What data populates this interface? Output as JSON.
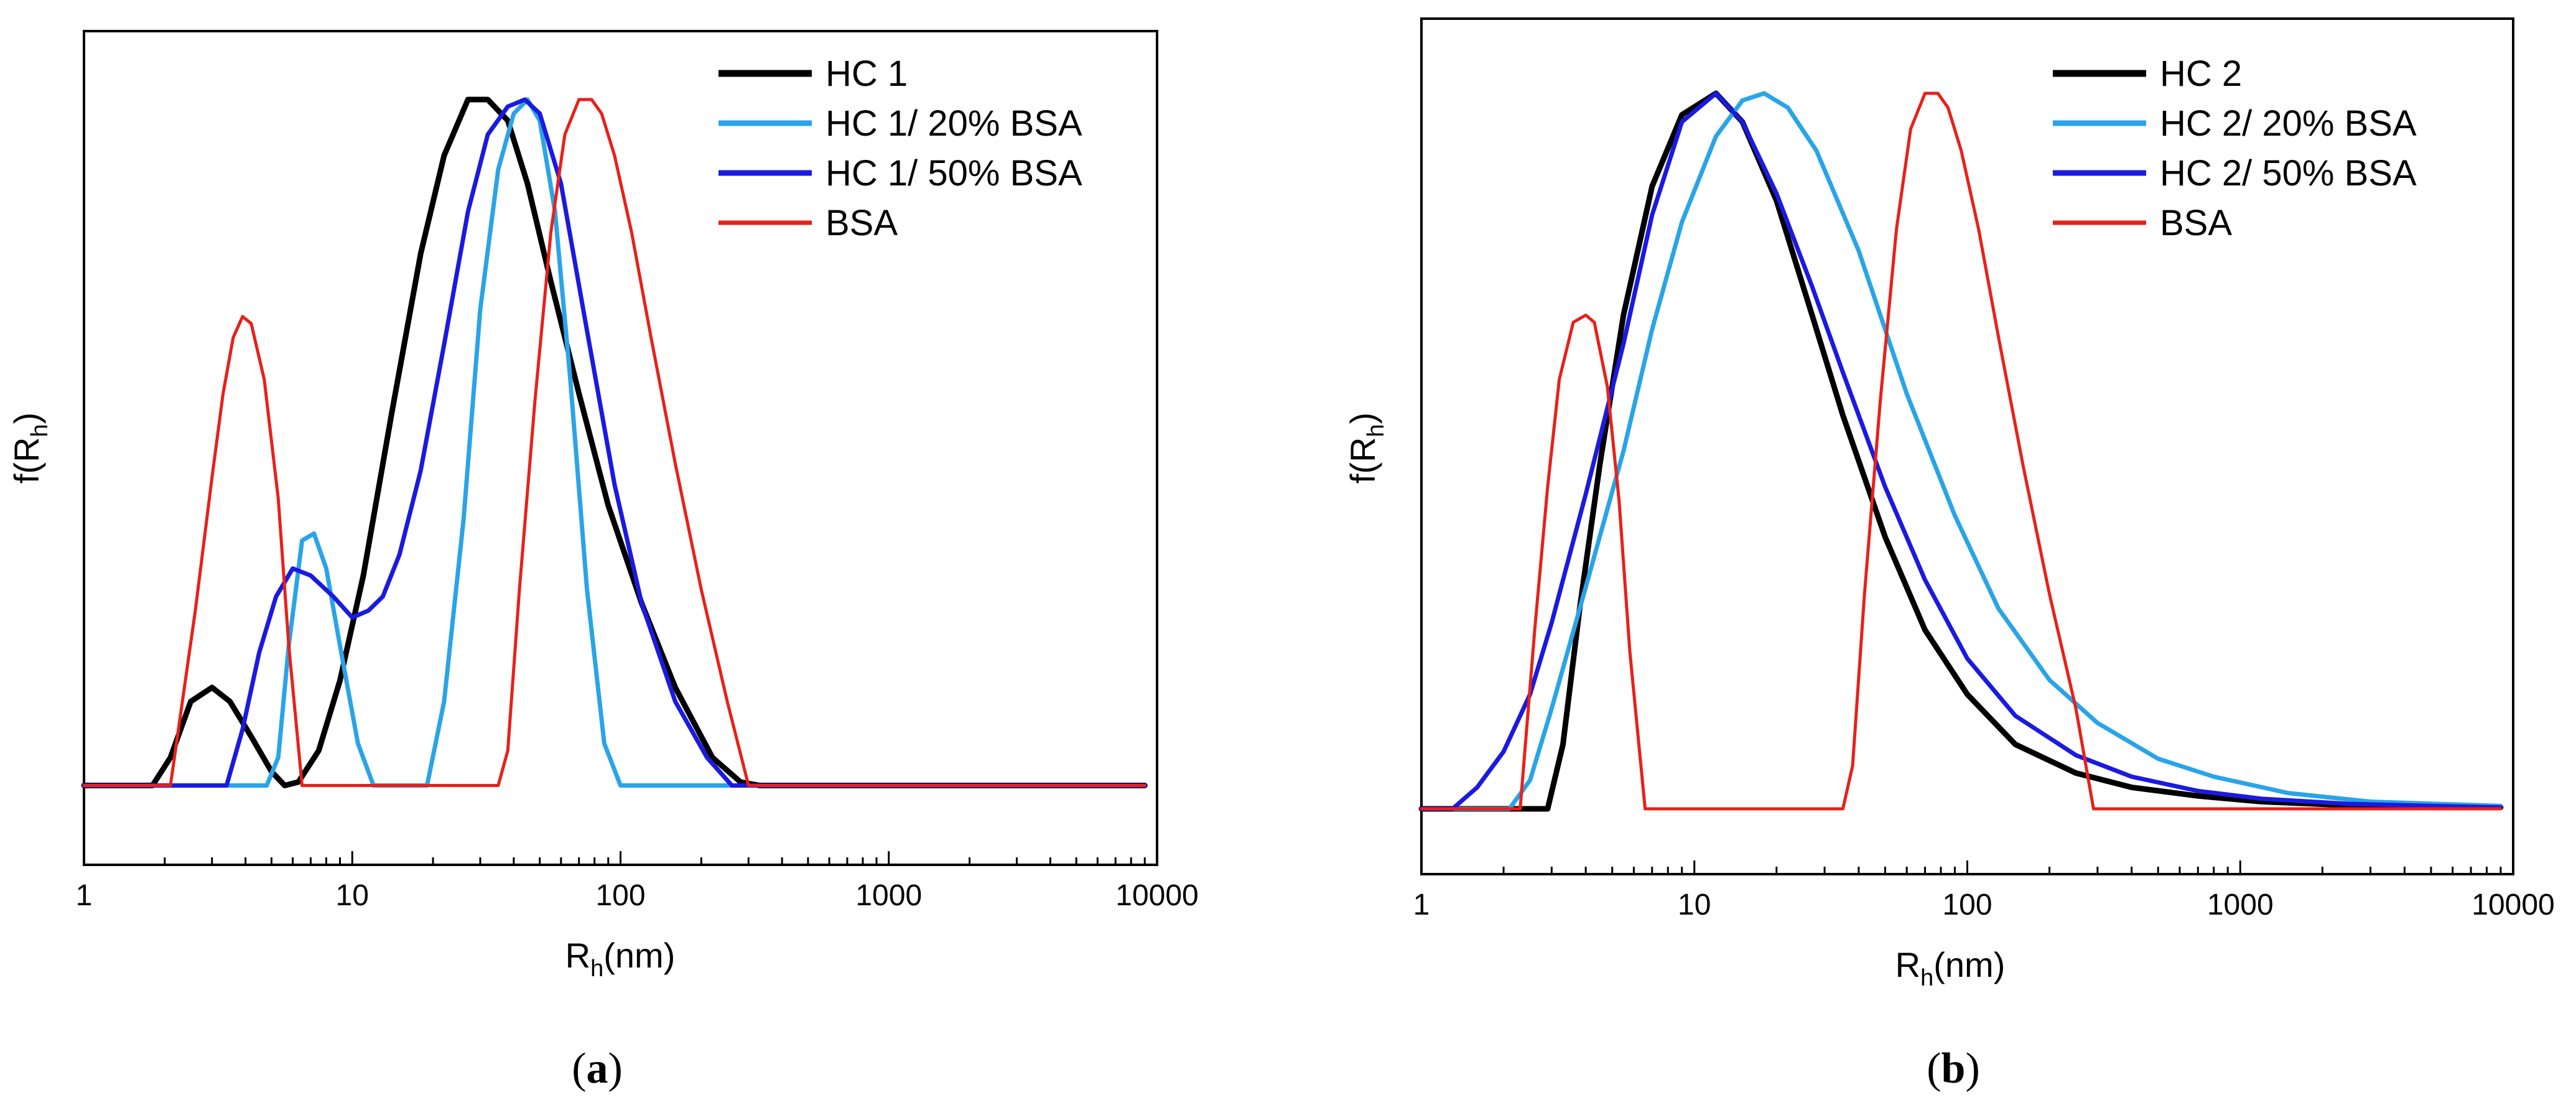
{
  "chart_data": [
    {
      "type": "line",
      "panel_label": "a",
      "xscale": "log",
      "xlim": [
        1,
        10000
      ],
      "x_ticks": [
        "1",
        "10",
        "100",
        "1000",
        "10000"
      ],
      "ylabel": "f(R",
      "ylabel_sub": "h",
      "ylabel_end": ")",
      "xlabel": "R",
      "xlabel_sub": "h",
      "xlabel_end": "(nm)",
      "ylim": [
        0,
        1.05
      ],
      "y_ticks": [],
      "legend_position": "top-right",
      "series": [
        {
          "name": "HC 1",
          "color": "#000000",
          "width": 9,
          "x": [
            1,
            1.8,
            2.1,
            2.5,
            3.0,
            3.5,
            4.2,
            5.0,
            5.6,
            6.3,
            7.5,
            9,
            11,
            14,
            18,
            22,
            27,
            32,
            38,
            45,
            55,
            70,
            90,
            120,
            160,
            220,
            280,
            330,
            400,
            9000
          ],
          "y": [
            0.02,
            0.02,
            0.06,
            0.14,
            0.16,
            0.14,
            0.09,
            0.04,
            0.02,
            0.025,
            0.07,
            0.17,
            0.32,
            0.55,
            0.78,
            0.92,
            1.0,
            1.0,
            0.97,
            0.88,
            0.74,
            0.58,
            0.42,
            0.28,
            0.16,
            0.06,
            0.025,
            0.02,
            0.02,
            0.02
          ]
        },
        {
          "name": "HC 1/ 20% BSA",
          "color": "#2aa4e8",
          "width": 7,
          "x": [
            1,
            4.8,
            5.3,
            5.8,
            6.5,
            7.2,
            8.0,
            9.0,
            10.5,
            12,
            19,
            22,
            26,
            30,
            35,
            40,
            45,
            50,
            57,
            65,
            75,
            87,
            100,
            9000
          ],
          "y": [
            0.02,
            0.02,
            0.06,
            0.22,
            0.37,
            0.38,
            0.33,
            0.22,
            0.08,
            0.02,
            0.02,
            0.14,
            0.4,
            0.7,
            0.9,
            0.98,
            1.0,
            0.97,
            0.84,
            0.6,
            0.3,
            0.08,
            0.02,
            0.02
          ]
        },
        {
          "name": "HC 1/ 50% BSA",
          "color": "#1a1ae0",
          "width": 7,
          "x": [
            1,
            3.4,
            3.9,
            4.5,
            5.2,
            6.0,
            7.0,
            8.5,
            10,
            11.5,
            13,
            15,
            18,
            22,
            27,
            32,
            38,
            44,
            50,
            60,
            75,
            95,
            120,
            160,
            210,
            260,
            310,
            9000
          ],
          "y": [
            0.02,
            0.02,
            0.1,
            0.21,
            0.29,
            0.33,
            0.32,
            0.29,
            0.26,
            0.27,
            0.29,
            0.35,
            0.47,
            0.65,
            0.84,
            0.95,
            0.99,
            1.0,
            0.98,
            0.88,
            0.67,
            0.45,
            0.28,
            0.14,
            0.06,
            0.02,
            0.02,
            0.02
          ]
        },
        {
          "name": "BSA",
          "color": "#e8201a",
          "width": 5,
          "x": [
            1,
            2.1,
            2.6,
            3.0,
            3.3,
            3.6,
            3.9,
            4.2,
            4.7,
            5.3,
            5.8,
            6.5,
            35,
            38,
            42,
            48,
            55,
            62,
            70,
            78,
            85,
            95,
            110,
            130,
            160,
            200,
            250,
            300,
            9000
          ],
          "y": [
            0.02,
            0.02,
            0.27,
            0.46,
            0.58,
            0.66,
            0.69,
            0.68,
            0.6,
            0.43,
            0.22,
            0.02,
            0.02,
            0.07,
            0.3,
            0.57,
            0.81,
            0.95,
            1.0,
            1.0,
            0.98,
            0.92,
            0.81,
            0.66,
            0.48,
            0.3,
            0.14,
            0.02,
            0.02
          ]
        }
      ]
    },
    {
      "type": "line",
      "panel_label": "b",
      "xscale": "log",
      "xlim": [
        1,
        10000
      ],
      "x_ticks": [
        "1",
        "10",
        "100",
        "1000",
        "10000"
      ],
      "ylabel": "f(R",
      "ylabel_sub": "h",
      "ylabel_end": ")",
      "xlabel": "R",
      "xlabel_sub": "h",
      "xlabel_end": "(nm)",
      "ylim": [
        0,
        1.05
      ],
      "y_ticks": [],
      "legend_position": "top-right",
      "series": [
        {
          "name": "HC 2",
          "color": "#000000",
          "width": 9,
          "x": [
            1,
            2.9,
            3.3,
            3.8,
            4.5,
            5.5,
            7,
            9,
            12,
            15,
            20,
            27,
            35,
            50,
            70,
            100,
            150,
            250,
            400,
            700,
            1200,
            2500,
            5000,
            9000
          ],
          "y": [
            0.0,
            0.0,
            0.09,
            0.28,
            0.48,
            0.69,
            0.87,
            0.97,
            1.0,
            0.96,
            0.85,
            0.69,
            0.55,
            0.38,
            0.25,
            0.16,
            0.09,
            0.05,
            0.03,
            0.018,
            0.01,
            0.005,
            0.003,
            0.002
          ]
        },
        {
          "name": "HC 2/ 20% BSA",
          "color": "#2aa4e8",
          "width": 7,
          "x": [
            1,
            2.1,
            2.5,
            3.0,
            4.0,
            5.5,
            7,
            9,
            12,
            15,
            18,
            22,
            28,
            40,
            60,
            90,
            130,
            200,
            300,
            500,
            800,
            1500,
            3000,
            9000
          ],
          "y": [
            0.0,
            0.0,
            0.04,
            0.14,
            0.31,
            0.5,
            0.67,
            0.82,
            0.94,
            0.99,
            1.0,
            0.98,
            0.92,
            0.78,
            0.58,
            0.41,
            0.28,
            0.18,
            0.12,
            0.07,
            0.045,
            0.022,
            0.01,
            0.004
          ]
        },
        {
          "name": "HC 2/ 50% BSA",
          "color": "#1a1ae0",
          "width": 7,
          "x": [
            1,
            1.3,
            1.6,
            2.0,
            2.5,
            3.0,
            4.0,
            5.5,
            7,
            9,
            12,
            15,
            20,
            27,
            35,
            50,
            70,
            100,
            150,
            250,
            400,
            700,
            1200,
            2500,
            5000,
            9000
          ],
          "y": [
            0.0,
            0.0,
            0.03,
            0.08,
            0.16,
            0.26,
            0.44,
            0.65,
            0.83,
            0.96,
            1.0,
            0.96,
            0.86,
            0.73,
            0.61,
            0.45,
            0.32,
            0.21,
            0.13,
            0.075,
            0.045,
            0.025,
            0.014,
            0.007,
            0.004,
            0.002
          ]
        },
        {
          "name": "BSA",
          "color": "#e8201a",
          "width": 5,
          "x": [
            1,
            2.3,
            2.6,
            2.9,
            3.2,
            3.6,
            4.0,
            4.3,
            4.8,
            5.3,
            5.8,
            6.6,
            35,
            38,
            42,
            48,
            55,
            62,
            70,
            78,
            85,
            95,
            110,
            130,
            160,
            200,
            250,
            290,
            9000
          ],
          "y": [
            0.0,
            0.0,
            0.25,
            0.45,
            0.6,
            0.68,
            0.69,
            0.68,
            0.59,
            0.43,
            0.22,
            0.0,
            0.0,
            0.06,
            0.3,
            0.57,
            0.81,
            0.95,
            1.0,
            1.0,
            0.98,
            0.92,
            0.81,
            0.66,
            0.48,
            0.3,
            0.14,
            0.0,
            0.0
          ]
        }
      ]
    }
  ]
}
